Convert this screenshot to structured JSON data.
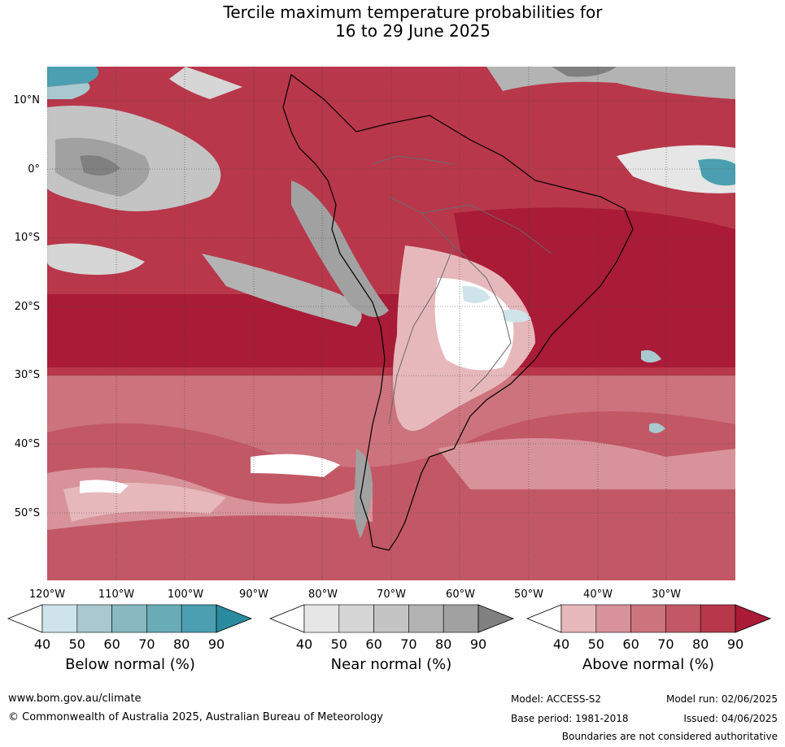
{
  "title_line1": "Tercile maximum temperature probabilities for",
  "title_line2": "16 to 29 June 2025",
  "lat_labels": [
    "10°N",
    "0°",
    "10°S",
    "20°S",
    "30°S",
    "40°S",
    "50°S"
  ],
  "lon_labels": [
    "120°W",
    "110°W",
    "100°W",
    "90°W",
    "80°W",
    "70°W",
    "60°W",
    "50°W",
    "40°W",
    "30°W"
  ],
  "colorbars": [
    {
      "title": "Below normal (%)",
      "ticks": [
        "40",
        "50",
        "60",
        "70",
        "80",
        "90"
      ],
      "colors": [
        "#ffffff",
        "#cfe4ea",
        "#a7c9cf",
        "#89b8c0",
        "#6aabb8",
        "#4b9fb0",
        "#2a8a9e"
      ]
    },
    {
      "title": "Near normal (%)",
      "ticks": [
        "40",
        "50",
        "60",
        "70",
        "80",
        "90"
      ],
      "colors": [
        "#ffffff",
        "#e6e6e6",
        "#d6d6d6",
        "#c4c4c4",
        "#b3b3b3",
        "#a1a1a1",
        "#808080"
      ]
    },
    {
      "title": "Above normal (%)",
      "ticks": [
        "40",
        "50",
        "60",
        "70",
        "80",
        "90"
      ],
      "colors": [
        "#ffffff",
        "#e6b8bc",
        "#d8939a",
        "#cc737d",
        "#c25865",
        "#b8374a",
        "#a91b36"
      ]
    }
  ],
  "footer": {
    "url": "www.bom.gov.au/climate",
    "copyright": "© Commonwealth of Australia 2025, Australian Bureau of Meteorology",
    "model": "Model: ACCESS-S2",
    "base_period": "Base period: 1981-2018",
    "model_run": "Model run: 02/06/2025",
    "issued": "Issued: 04/06/2025",
    "boundaries": "Boundaries are not considered authoritative"
  }
}
